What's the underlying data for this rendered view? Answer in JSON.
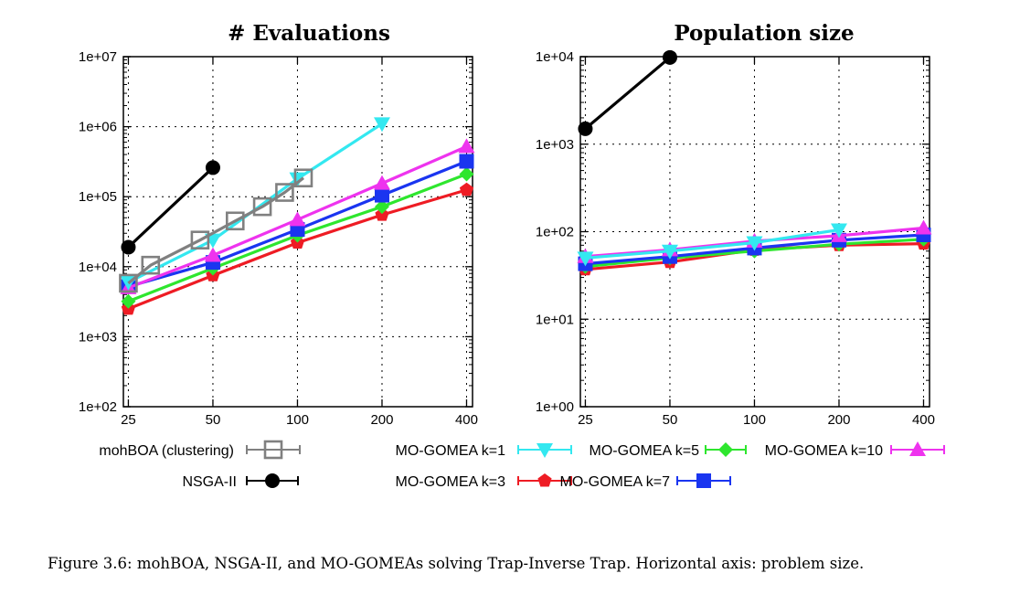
{
  "chart_data": [
    {
      "type": "line",
      "title": "# Evaluations",
      "xlabel": "",
      "ylabel": "",
      "x_scale": "log",
      "y_scale": "log",
      "x_ticks": [
        25,
        50,
        100,
        200,
        400
      ],
      "x_tick_labels": [
        "25",
        "50",
        "100",
        "200",
        "400"
      ],
      "y_ticks": [
        100,
        1000,
        10000,
        100000,
        1000000,
        10000000
      ],
      "y_tick_labels": [
        "1e+02",
        "1e+03",
        "1e+04",
        "1e+05",
        "1e+06",
        "1e+07"
      ],
      "xlim": [
        24,
        420
      ],
      "ylim": [
        100,
        10000000
      ],
      "grid": true,
      "series": [
        {
          "name": "mohBOA (clustering)",
          "x": [
            25,
            30,
            45,
            60,
            75,
            90,
            105
          ],
          "y": [
            5800,
            10500,
            24000,
            45000,
            72000,
            115000,
            185000
          ]
        },
        {
          "name": "NSGA-II",
          "x": [
            25,
            50
          ],
          "y": [
            19000,
            260000
          ]
        },
        {
          "name": "MO-GOMEA k=1",
          "x": [
            25,
            50,
            100,
            200
          ],
          "y": [
            6000,
            24000,
            180000,
            1100000
          ]
        },
        {
          "name": "MO-GOMEA k=3",
          "x": [
            25,
            50,
            100,
            200,
            400
          ],
          "y": [
            2500,
            7500,
            22000,
            55000,
            125000
          ]
        },
        {
          "name": "MO-GOMEA k=5",
          "x": [
            25,
            50,
            100,
            200,
            400
          ],
          "y": [
            3200,
            9500,
            28000,
            72000,
            210000
          ]
        },
        {
          "name": "MO-GOMEA k=7",
          "x": [
            25,
            50,
            100,
            200,
            400
          ],
          "y": [
            5200,
            11500,
            34000,
            105000,
            320000
          ]
        },
        {
          "name": "MO-GOMEA k=10",
          "x": [
            25,
            50,
            100,
            200,
            400
          ],
          "y": [
            5000,
            14500,
            47000,
            155000,
            520000
          ]
        }
      ]
    },
    {
      "type": "line",
      "title": "Population size",
      "xlabel": "",
      "ylabel": "",
      "x_scale": "log",
      "y_scale": "log",
      "x_ticks": [
        25,
        50,
        100,
        200,
        400
      ],
      "x_tick_labels": [
        "25",
        "50",
        "100",
        "200",
        "400"
      ],
      "y_ticks": [
        1,
        10,
        100,
        1000,
        10000
      ],
      "y_tick_labels": [
        "1e+00",
        "1e+01",
        "1e+02",
        "1e+03",
        "1e+04"
      ],
      "xlim": [
        24,
        420
      ],
      "ylim": [
        1,
        10000
      ],
      "grid": true,
      "series": [
        {
          "name": "NSGA-II",
          "x": [
            25,
            50
          ],
          "y": [
            1500,
            9800
          ]
        },
        {
          "name": "MO-GOMEA k=1",
          "x": [
            25,
            50,
            100,
            200
          ],
          "y": [
            50,
            60,
            75,
            105
          ]
        },
        {
          "name": "MO-GOMEA k=3",
          "x": [
            25,
            50,
            100,
            200,
            400
          ],
          "y": [
            37,
            45,
            62,
            70,
            73
          ]
        },
        {
          "name": "MO-GOMEA k=5",
          "x": [
            25,
            50,
            100,
            200,
            400
          ],
          "y": [
            40,
            50,
            60,
            72,
            82
          ]
        },
        {
          "name": "MO-GOMEA k=7",
          "x": [
            25,
            50,
            100,
            200,
            400
          ],
          "y": [
            43,
            52,
            65,
            80,
            92
          ]
        },
        {
          "name": "MO-GOMEA k=10",
          "x": [
            25,
            50,
            100,
            200,
            400
          ],
          "y": [
            52,
            62,
            78,
            90,
            110
          ]
        }
      ]
    }
  ],
  "legend": [
    {
      "name": "mohBOA (clustering)",
      "color": "#808080",
      "marker": "open-square"
    },
    {
      "name": "MO-GOMEA k=1",
      "color": "#33e8f0",
      "marker": "triangle-down"
    },
    {
      "name": "MO-GOMEA k=5",
      "color": "#2ee62e",
      "marker": "diamond"
    },
    {
      "name": "MO-GOMEA k=10",
      "color": "#ee33ee",
      "marker": "triangle-up"
    },
    {
      "name": "NSGA-II",
      "color": "#000000",
      "marker": "circle"
    },
    {
      "name": "MO-GOMEA k=3",
      "color": "#ee1c24",
      "marker": "pentagon"
    },
    {
      "name": "MO-GOMEA k=7",
      "color": "#1a35f0",
      "marker": "square"
    }
  ],
  "caption": "Figure 3.6: mohBOA, NSGA-II, and MO-GOMEAs solving Trap-Inverse Trap. Horizontal axis: problem size."
}
